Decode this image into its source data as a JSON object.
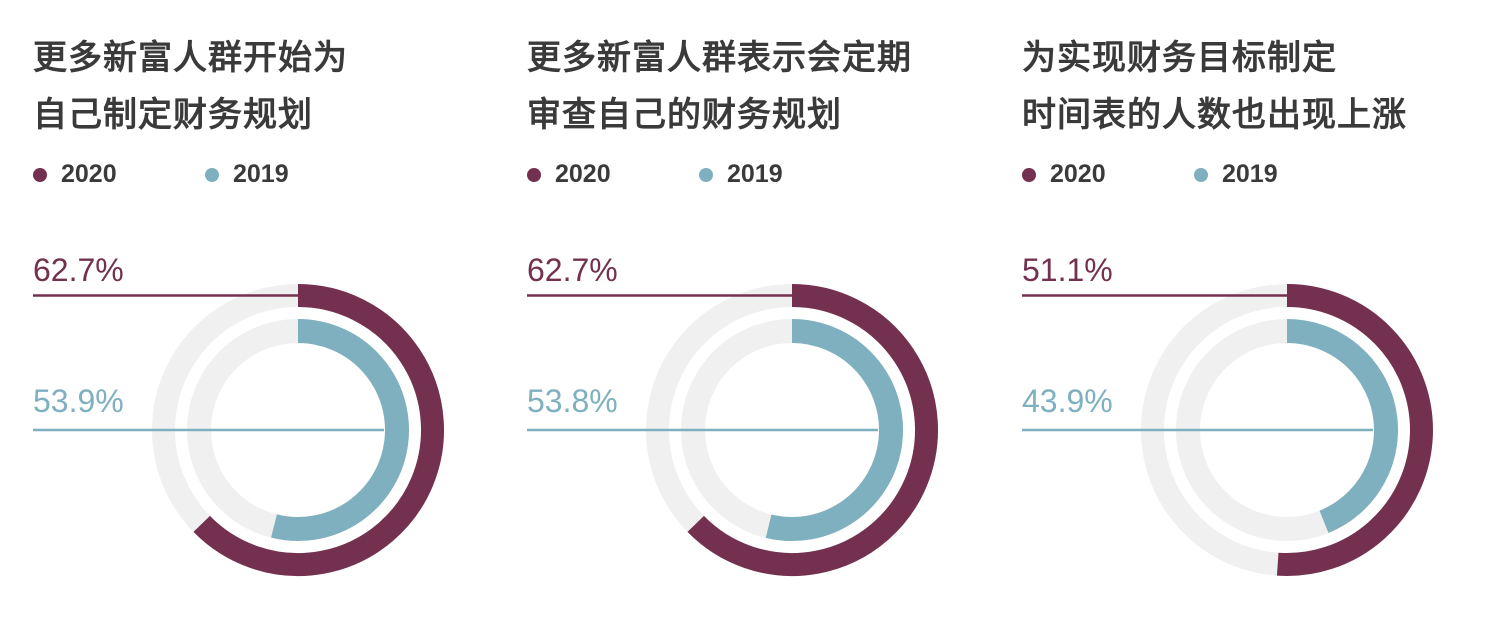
{
  "colors": {
    "c2020": "#74314F",
    "c2019": "#7FB0BF",
    "track": "#F0F0F0",
    "text": "#3a3a3a"
  },
  "chart_data": [
    {
      "type": "donut",
      "title_lines": [
        "更多新富人群开始为",
        "自己制定财务规划"
      ],
      "legend": [
        "2020",
        "2019"
      ],
      "series": [
        {
          "name": "2020",
          "value": 62.7,
          "label": "62.7%"
        },
        {
          "name": "2019",
          "value": 53.9,
          "label": "53.9%"
        }
      ]
    },
    {
      "type": "donut",
      "title_lines": [
        "更多新富人群表示会定期",
        "审查自己的财务规划"
      ],
      "legend": [
        "2020",
        "2019"
      ],
      "series": [
        {
          "name": "2020",
          "value": 62.7,
          "label": "62.7%"
        },
        {
          "name": "2019",
          "value": 53.8,
          "label": "53.8%"
        }
      ]
    },
    {
      "type": "donut",
      "title_lines": [
        "为实现财务目标制定",
        "时间表的人数也出现上涨"
      ],
      "legend": [
        "2020",
        "2019"
      ],
      "series": [
        {
          "name": "2020",
          "value": 51.1,
          "label": "51.1%"
        },
        {
          "name": "2019",
          "value": 43.9,
          "label": "43.9%"
        }
      ]
    }
  ]
}
